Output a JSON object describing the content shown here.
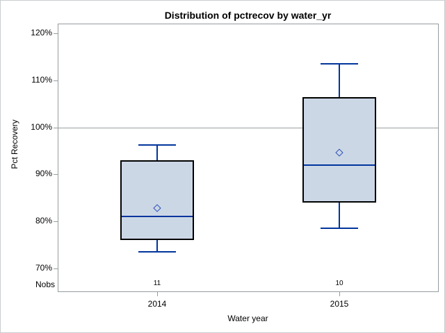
{
  "chart_data": {
    "type": "boxplot",
    "title": "Distribution of pctrecov by water_yr",
    "xlabel": "Water year",
    "ylabel": "Pct Recovery",
    "ylim": [
      70,
      120
    ],
    "y_ticks": [
      120,
      110,
      100,
      90,
      80,
      70
    ],
    "y_tick_labels": [
      "120%",
      "110%",
      "100%",
      "90%",
      "80%",
      "70%"
    ],
    "reference_line": 100,
    "grid": "horizontal reference line at 100% only",
    "legend": "none",
    "nobs_label": "Nobs",
    "categories": [
      "2014",
      "2015"
    ],
    "series": [
      {
        "category": "2014",
        "nobs": "11",
        "whisker_low": 73.5,
        "q1": 76,
        "median": 81,
        "mean": 82.7,
        "q3": 93,
        "whisker_high": 96.3
      },
      {
        "category": "2015",
        "nobs": "10",
        "whisker_low": 78.5,
        "q1": 84,
        "median": 92,
        "mean": 94.5,
        "q3": 106.5,
        "whisker_high": 113.5
      }
    ],
    "colors": {
      "box_fill": "#ccd7e6",
      "box_border": "#000000",
      "whisker": "#00349c",
      "median": "#00349c",
      "mean_marker": "#2a50b4",
      "axis_frame": "#949c9e",
      "reference_line": "#9aa0a0",
      "text": "#000000",
      "background": "#ffffff"
    }
  }
}
